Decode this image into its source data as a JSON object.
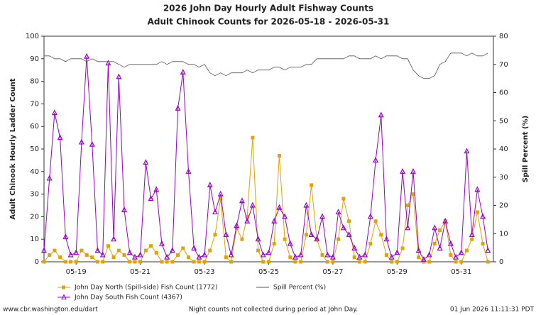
{
  "chart_data": {
    "type": "line",
    "title": "2026 John Day Hourly Adult Fishway Counts",
    "subtitle": "Adult Chinook Counts for 2026-05-18 - 2026-05-31",
    "y_label": "Adult Chinook Hourly Ladder Count",
    "y2_label": "Spill Percent (%)",
    "footer_left": "www.cbr.washington.edu/dart",
    "footer_center": "Night counts not collected during period at John Day.",
    "footer_right": "01 Jun 2026 11:11:31 PDT",
    "x": [
      18,
      18.17,
      18.33,
      18.5,
      18.67,
      18.83,
      19,
      19.17,
      19.33,
      19.5,
      19.67,
      19.83,
      20,
      20.17,
      20.33,
      20.5,
      20.67,
      20.83,
      21,
      21.17,
      21.33,
      21.5,
      21.67,
      21.83,
      22,
      22.17,
      22.33,
      22.5,
      22.67,
      22.83,
      23,
      23.17,
      23.33,
      23.5,
      23.67,
      23.83,
      24,
      24.17,
      24.33,
      24.5,
      24.67,
      24.83,
      25,
      25.17,
      25.33,
      25.5,
      25.67,
      25.83,
      26,
      26.17,
      26.33,
      26.5,
      26.67,
      26.83,
      27,
      27.17,
      27.33,
      27.5,
      27.67,
      27.83,
      28,
      28.17,
      28.33,
      28.5,
      28.67,
      28.83,
      29,
      29.17,
      29.33,
      29.5,
      29.67,
      29.83,
      30,
      30.17,
      30.33,
      30.5,
      30.67,
      30.83,
      31,
      31.17,
      31.33,
      31.5,
      31.67,
      31.83
    ],
    "xlim": [
      18,
      32
    ],
    "xticks": [
      {
        "value": 19,
        "label": "05-19"
      },
      {
        "value": 21,
        "label": "05-21"
      },
      {
        "value": 23,
        "label": "05-23"
      },
      {
        "value": 25,
        "label": "05-25"
      },
      {
        "value": 27,
        "label": "05-27"
      },
      {
        "value": 29,
        "label": "05-29"
      },
      {
        "value": 31,
        "label": "05-31"
      }
    ],
    "ylim": [
      0,
      100
    ],
    "yticks": [
      0,
      10,
      20,
      30,
      40,
      50,
      60,
      70,
      80,
      90,
      100
    ],
    "y2lim": [
      0,
      80
    ],
    "y2ticks": [
      0,
      10,
      20,
      30,
      40,
      50,
      60,
      70,
      80
    ],
    "series": [
      {
        "name": "John Day North (Spill-side) Fish Count (1772)",
        "color": "#e0a300",
        "marker": "square",
        "values": [
          0,
          3,
          5,
          2,
          0,
          0,
          0,
          5,
          3,
          2,
          0,
          0,
          7,
          2,
          5,
          3,
          0,
          0,
          0,
          5,
          7,
          4,
          0,
          0,
          0,
          3,
          6,
          2,
          0,
          0,
          0,
          5,
          12,
          28,
          2,
          0,
          15,
          10,
          20,
          55,
          5,
          0,
          0,
          8,
          47,
          10,
          2,
          0,
          0,
          12,
          34,
          10,
          3,
          0,
          0,
          10,
          28,
          18,
          2,
          0,
          0,
          8,
          18,
          12,
          3,
          0,
          0,
          6,
          25,
          30,
          2,
          0,
          0,
          8,
          14,
          18,
          3,
          0,
          0,
          5,
          10,
          22,
          8,
          0
        ]
      },
      {
        "name": "John Day South Fish Count (4367)",
        "color": "#9900cc",
        "marker": "triangle",
        "values": [
          5,
          37,
          66,
          55,
          11,
          3,
          4,
          53,
          91,
          52,
          5,
          3,
          88,
          10,
          82,
          23,
          4,
          2,
          3,
          44,
          28,
          32,
          8,
          2,
          5,
          68,
          84,
          40,
          6,
          2,
          3,
          34,
          22,
          30,
          12,
          3,
          16,
          27,
          18,
          25,
          10,
          3,
          4,
          18,
          24,
          20,
          8,
          2,
          3,
          25,
          12,
          10,
          20,
          3,
          2,
          22,
          15,
          12,
          6,
          2,
          3,
          20,
          45,
          65,
          10,
          2,
          4,
          40,
          15,
          40,
          5,
          1,
          3,
          15,
          6,
          18,
          8,
          2,
          4,
          49,
          12,
          32,
          20,
          5
        ]
      },
      {
        "name": "Spill Percent (%)",
        "color": "#555555",
        "marker": "none",
        "axis": "y2",
        "values": [
          73,
          73,
          72,
          72,
          71,
          72,
          72,
          72,
          71,
          72,
          71,
          71,
          71,
          71,
          70,
          69,
          70,
          70,
          70,
          70,
          70,
          70,
          71,
          70,
          71,
          71,
          71,
          70,
          70,
          69,
          70,
          67,
          66,
          67,
          66,
          67,
          67,
          67,
          68,
          67,
          68,
          68,
          68,
          69,
          69,
          68,
          69,
          69,
          69,
          70,
          70,
          72,
          72,
          72,
          72,
          72,
          72,
          73,
          73,
          72,
          72,
          72,
          73,
          72,
          73,
          73,
          73,
          72,
          72,
          68,
          66,
          65,
          65,
          66,
          70,
          71,
          74,
          74,
          74,
          73,
          74,
          73,
          73,
          74
        ]
      }
    ]
  }
}
